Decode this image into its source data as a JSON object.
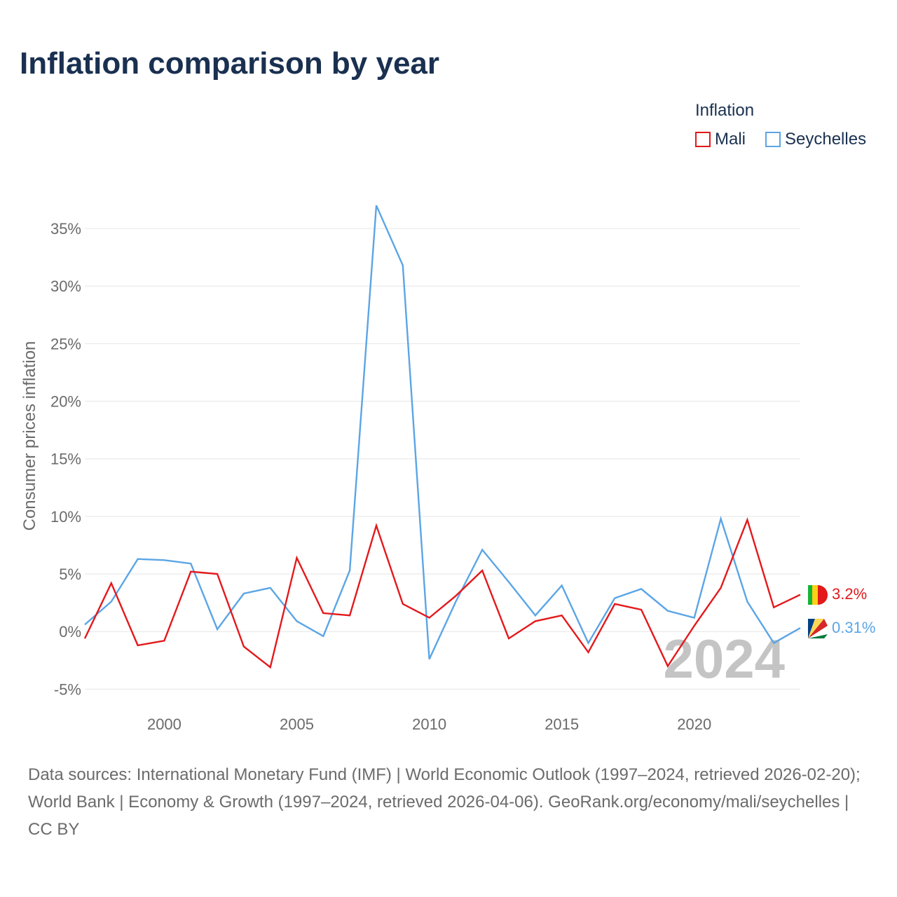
{
  "chart_data": {
    "type": "line",
    "title": "Inflation comparison by year",
    "legend_title": "Inflation",
    "legend_position": "top-right",
    "xlabel": "",
    "ylabel": "Consumer prices inflation",
    "x": [
      1997,
      1998,
      1999,
      2000,
      2001,
      2002,
      2003,
      2004,
      2005,
      2006,
      2007,
      2008,
      2009,
      2010,
      2011,
      2012,
      2013,
      2014,
      2015,
      2016,
      2017,
      2018,
      2019,
      2020,
      2021,
      2022,
      2023,
      2024
    ],
    "xlim": [
      1997,
      2024
    ],
    "ylim": [
      -6.5,
      37.5
    ],
    "x_ticks": [
      2000,
      2005,
      2010,
      2015,
      2020
    ],
    "x_tick_labels": [
      "2000",
      "2005",
      "2010",
      "2015",
      "2020"
    ],
    "y_ticks": [
      -5,
      0,
      5,
      10,
      15,
      20,
      25,
      30,
      35
    ],
    "y_tick_labels": [
      "-5%",
      "0%",
      "5%",
      "10%",
      "15%",
      "20%",
      "25%",
      "30%",
      "35%"
    ],
    "grid": true,
    "series": [
      {
        "name": "Mali",
        "color": "#e3191c",
        "values": [
          -0.6,
          4.2,
          -1.2,
          -0.8,
          5.2,
          5.0,
          -1.3,
          -3.1,
          6.4,
          1.6,
          1.4,
          9.2,
          2.4,
          1.2,
          3.1,
          5.3,
          -0.6,
          0.9,
          1.4,
          -1.8,
          2.4,
          1.9,
          -3.0,
          0.5,
          3.8,
          9.7,
          2.1,
          3.2
        ],
        "end_label": "3.2%",
        "flag_icon": "mali-flag-icon"
      },
      {
        "name": "Seychelles",
        "color": "#5ba5e6",
        "values": [
          0.6,
          2.6,
          6.3,
          6.2,
          5.9,
          0.2,
          3.3,
          3.8,
          0.9,
          -0.4,
          5.3,
          37.0,
          31.8,
          -2.4,
          2.6,
          7.1,
          4.3,
          1.4,
          4.0,
          -1.0,
          2.9,
          3.7,
          1.8,
          1.2,
          9.8,
          2.6,
          -1.0,
          0.31
        ],
        "end_label": "0.31%",
        "flag_icon": "seychelles-flag-icon"
      }
    ],
    "annotations": [
      "2024"
    ]
  },
  "footer": {
    "text": "Data sources: International Monetary Fund (IMF) | World Economic Outlook (1997–2024, retrieved 2026-02-20); World Bank | Economy & Growth (1997–2024, retrieved 2026-04-06). GeoRank.org/economy/mali/seychelles | CC BY"
  },
  "colors": {
    "title": "#1a3050",
    "axis_text": "#6b6b6b",
    "grid": "#e6e6e6",
    "watermark": "#c4c4c4"
  }
}
